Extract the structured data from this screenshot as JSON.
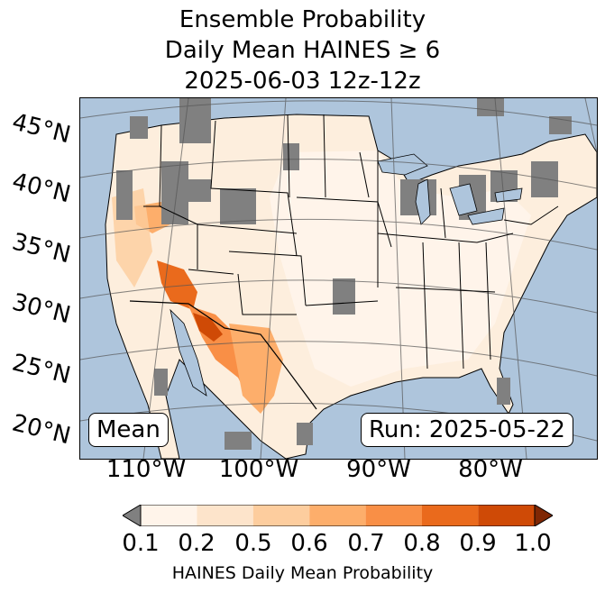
{
  "title": {
    "line1": "Ensemble Probability",
    "line2": "Daily Mean HAINES ≥ 6",
    "line3": "2025-06-03 12z-12z"
  },
  "map": {
    "left_label": "Mean",
    "right_label": "Run: 2025-05-22",
    "lat_labels": [
      "45°N",
      "40°N",
      "35°N",
      "30°N",
      "25°N",
      "20°N"
    ],
    "lon_labels": [
      "110°W",
      "100°W",
      "90°W",
      "80°W"
    ],
    "colors": {
      "ocean": "#aec5dc",
      "missing": "#808080",
      "land_low": "#fdeedd"
    }
  },
  "colorbar": {
    "label": "HAINES Daily Mean Probability",
    "ticks": [
      "0.1",
      "0.2",
      "0.5",
      "0.6",
      "0.7",
      "0.8",
      "0.9",
      "1.0"
    ],
    "colors": [
      "#fff4ea",
      "#fde4cb",
      "#fdcd9e",
      "#fdae6b",
      "#f98f46",
      "#ea6a1c",
      "#cf4a06"
    ],
    "under_color": "#808080",
    "over_color": "#7f2704"
  }
}
